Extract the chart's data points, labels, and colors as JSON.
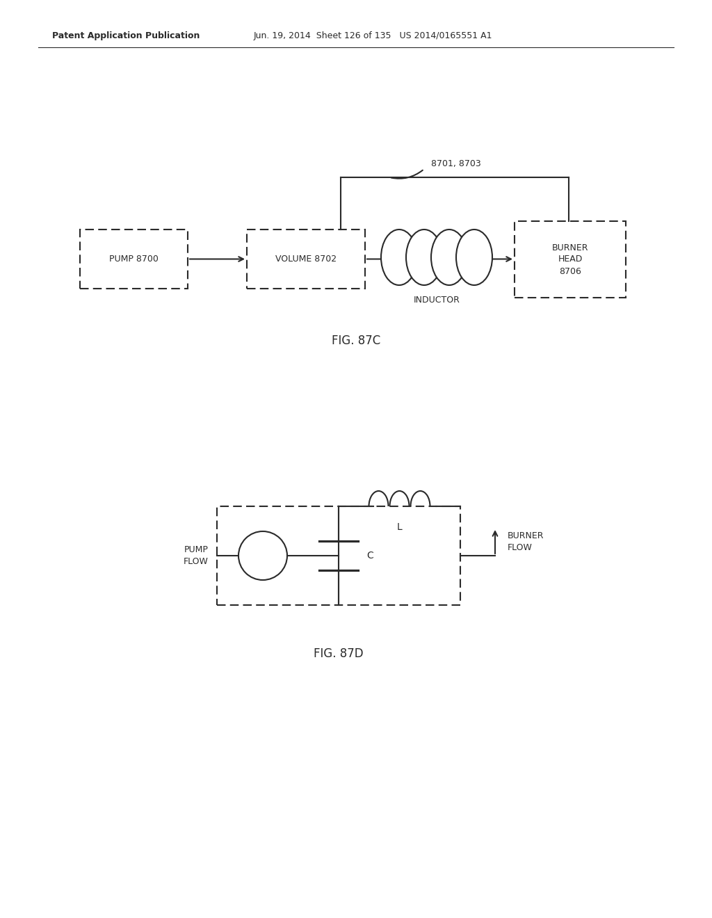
{
  "bg_color": "#ffffff",
  "header_bold": "Patent Application Publication",
  "header_rest": "Jun. 19, 2014  Sheet 126 of 135   US 2014/0165551 A1",
  "fig87c_label": "FIG. 87C",
  "fig87d_label": "FIG. 87D",
  "pump_label": "PUMP 8700",
  "volume_label": "VOLUME 8702",
  "burner_label": "BURNER\nHEAD\n8706",
  "inductor_label": "INDUCTOR",
  "ref_label": "8701, 8703",
  "pump_flow_label": "PUMP\nFLOW",
  "burner_flow_label": "BURNER\nFLOW",
  "L_label": "L",
  "C_label": "C",
  "line_color": "#2a2a2a",
  "text_color": "#2a2a2a",
  "font_size_header": 9,
  "font_size_body": 9,
  "font_size_fig": 12
}
